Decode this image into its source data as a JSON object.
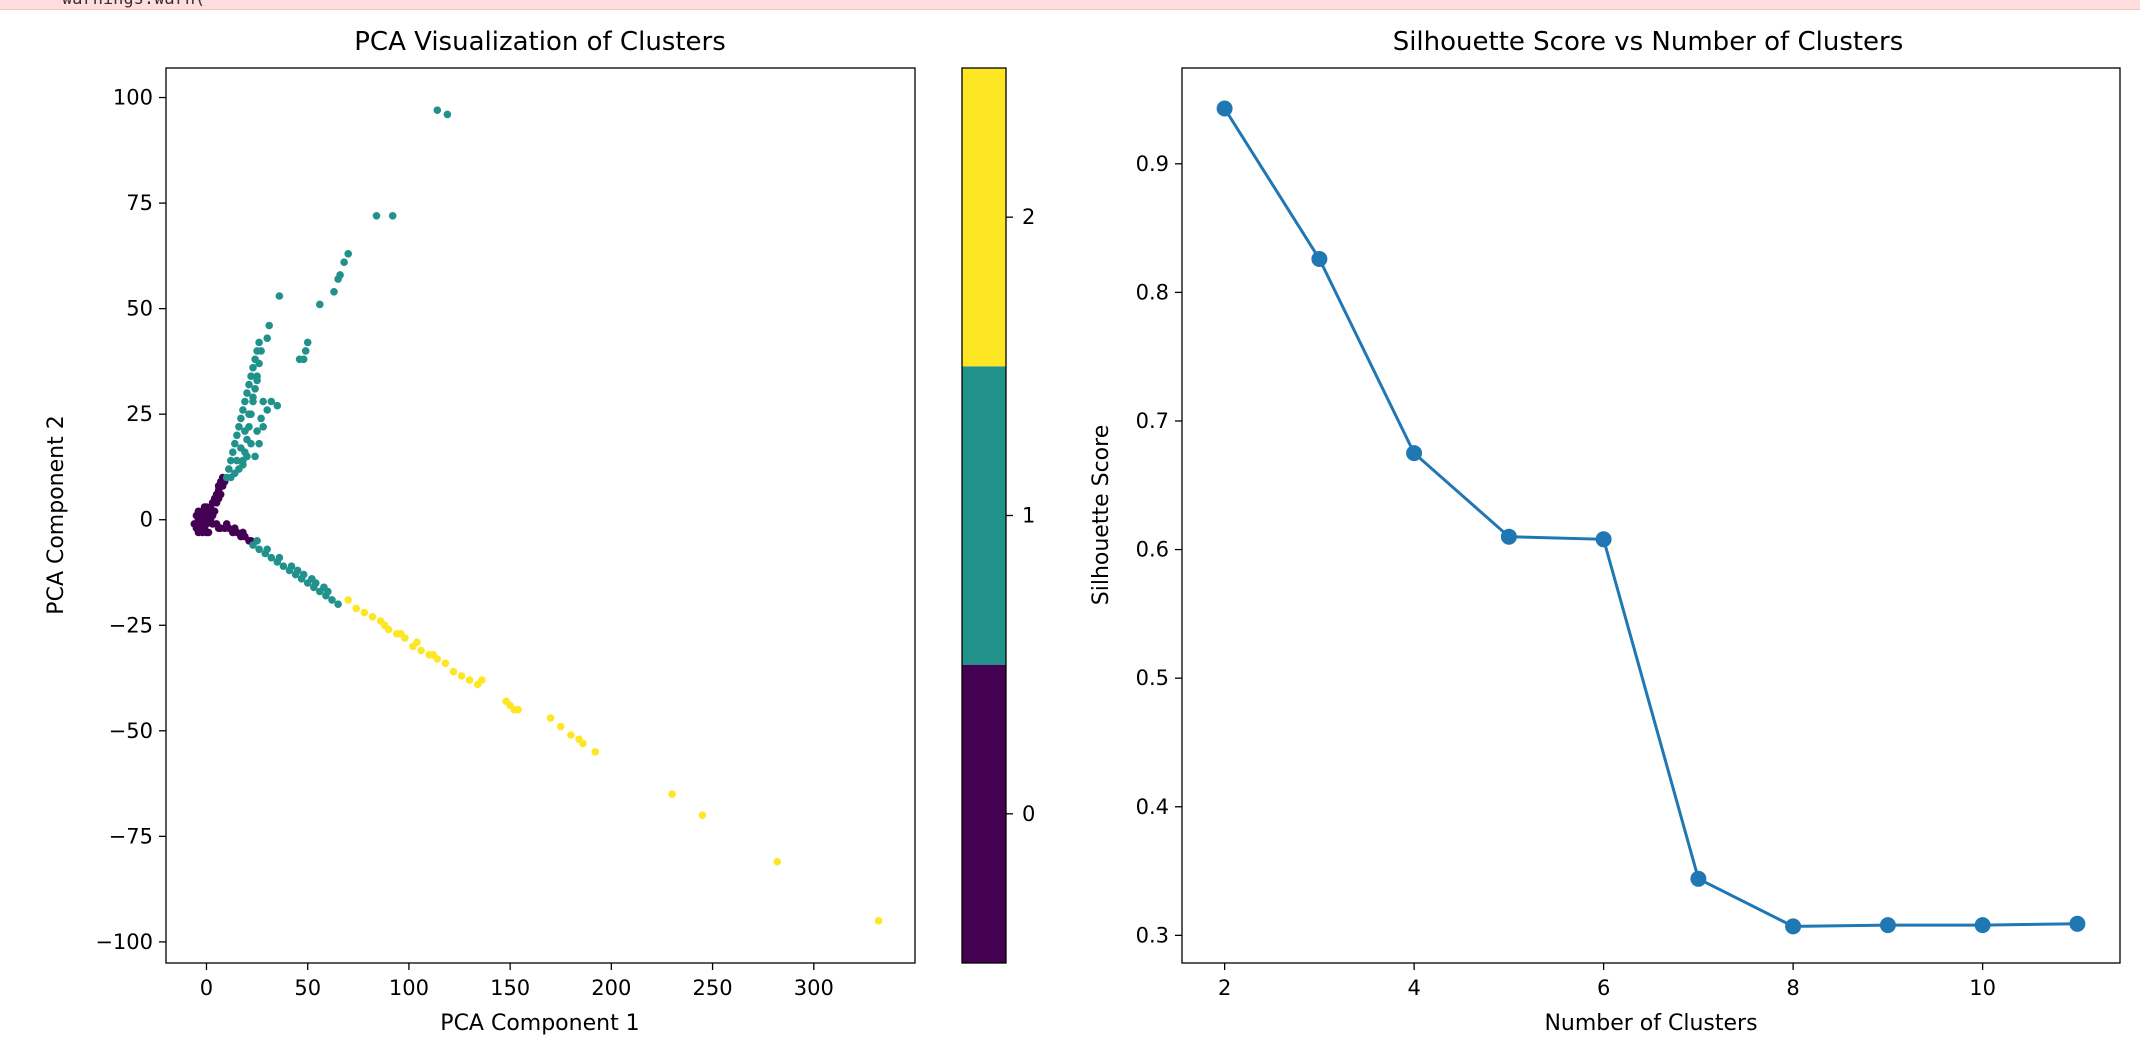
{
  "warning": {
    "text": "warnings.warn("
  },
  "colors": {
    "viridis0": "#440154",
    "viridis1": "#21918c",
    "viridis2": "#fde725",
    "line": "#1f77b4"
  },
  "chart_data": [
    {
      "type": "scatter",
      "title": "PCA Visualization of Clusters",
      "xlabel": "PCA Component 1",
      "ylabel": "PCA Component 2",
      "xlim": [
        -20,
        350
      ],
      "ylim": [
        -105,
        107
      ],
      "xticks": [
        0,
        50,
        100,
        150,
        200,
        250,
        300
      ],
      "yticks": [
        -100,
        -75,
        -50,
        -25,
        0,
        25,
        50,
        75,
        100
      ],
      "colorbar": {
        "ticks": [
          0,
          1,
          2
        ],
        "range": [
          -0.5,
          2.5
        ],
        "colors": [
          "#440154",
          "#21918c",
          "#fde725"
        ]
      },
      "series": [
        {
          "cluster": 0,
          "color": "#440154",
          "points": [
            [
              -4,
              -3
            ],
            [
              -3,
              -2
            ],
            [
              -2,
              -1
            ],
            [
              -1,
              0
            ],
            [
              0,
              1
            ],
            [
              1,
              2
            ],
            [
              -2,
              2
            ],
            [
              -3,
              1
            ],
            [
              -4,
              0
            ],
            [
              -3,
              -1
            ],
            [
              -1,
              -2
            ],
            [
              0,
              -1
            ],
            [
              2,
              0
            ],
            [
              3,
              1
            ],
            [
              2,
              2
            ],
            [
              0,
              3
            ],
            [
              -1,
              3
            ],
            [
              1,
              -3
            ],
            [
              -5,
              -2
            ],
            [
              -4,
              2
            ],
            [
              2,
              3
            ],
            [
              3,
              4
            ],
            [
              4,
              5
            ],
            [
              5,
              6
            ],
            [
              6,
              7
            ],
            [
              6,
              8
            ],
            [
              7,
              9
            ],
            [
              8,
              10
            ],
            [
              8,
              8
            ],
            [
              9,
              9
            ],
            [
              5,
              4
            ],
            [
              4,
              2
            ],
            [
              6,
              5
            ],
            [
              7,
              6
            ],
            [
              3,
              -1
            ],
            [
              5,
              -1
            ],
            [
              7,
              -2
            ],
            [
              9,
              -2
            ],
            [
              11,
              -2
            ],
            [
              13,
              -3
            ],
            [
              15,
              -3
            ],
            [
              17,
              -4
            ],
            [
              19,
              -4
            ],
            [
              21,
              -5
            ],
            [
              22,
              -5
            ],
            [
              6,
              -2
            ],
            [
              10,
              -1
            ],
            [
              14,
              -2
            ],
            [
              18,
              -3
            ],
            [
              -4,
              -2
            ],
            [
              -2,
              -3
            ],
            [
              0,
              -3
            ],
            [
              1,
              1
            ],
            [
              -5,
              1
            ],
            [
              -6,
              -1
            ]
          ]
        },
        {
          "cluster": 1,
          "color": "#21918c",
          "points": [
            [
              10,
              10
            ],
            [
              11,
              12
            ],
            [
              12,
              14
            ],
            [
              13,
              16
            ],
            [
              14,
              18
            ],
            [
              15,
              20
            ],
            [
              16,
              22
            ],
            [
              17,
              24
            ],
            [
              18,
              26
            ],
            [
              19,
              28
            ],
            [
              20,
              30
            ],
            [
              21,
              32
            ],
            [
              22,
              34
            ],
            [
              23,
              36
            ],
            [
              24,
              38
            ],
            [
              25,
              40
            ],
            [
              26,
              42
            ],
            [
              27,
              40
            ],
            [
              26,
              37
            ],
            [
              25,
              34
            ],
            [
              24,
              31
            ],
            [
              23,
              28
            ],
            [
              22,
              25
            ],
            [
              21,
              22
            ],
            [
              20,
              19
            ],
            [
              19,
              16
            ],
            [
              18,
              14
            ],
            [
              16,
              12
            ],
            [
              14,
              11
            ],
            [
              12,
              10
            ],
            [
              15,
              14
            ],
            [
              17,
              17
            ],
            [
              19,
              21
            ],
            [
              21,
              25
            ],
            [
              23,
              29
            ],
            [
              25,
              33
            ],
            [
              24,
              15
            ],
            [
              26,
              18
            ],
            [
              28,
              22
            ],
            [
              30,
              26
            ],
            [
              32,
              28
            ],
            [
              35,
              27
            ],
            [
              28,
              28
            ],
            [
              22,
              18
            ],
            [
              20,
              15
            ],
            [
              18,
              13
            ],
            [
              25,
              21
            ],
            [
              27,
              24
            ],
            [
              30,
              43
            ],
            [
              31,
              46
            ],
            [
              36,
              53
            ],
            [
              48,
              38
            ],
            [
              46,
              38
            ],
            [
              49,
              40
            ],
            [
              50,
              42
            ],
            [
              56,
              51
            ],
            [
              63,
              54
            ],
            [
              65,
              57
            ],
            [
              66,
              58
            ],
            [
              68,
              61
            ],
            [
              70,
              63
            ],
            [
              84,
              72
            ],
            [
              92,
              72
            ],
            [
              114,
              97
            ],
            [
              119,
              96
            ],
            [
              23,
              -6
            ],
            [
              26,
              -7
            ],
            [
              29,
              -8
            ],
            [
              32,
              -9
            ],
            [
              35,
              -10
            ],
            [
              38,
              -11
            ],
            [
              41,
              -12
            ],
            [
              44,
              -13
            ],
            [
              47,
              -14
            ],
            [
              50,
              -15
            ],
            [
              53,
              -16
            ],
            [
              56,
              -17
            ],
            [
              59,
              -18
            ],
            [
              62,
              -19
            ],
            [
              65,
              -20
            ],
            [
              25,
              -5
            ],
            [
              30,
              -7
            ],
            [
              36,
              -9
            ],
            [
              42,
              -11
            ],
            [
              48,
              -13
            ],
            [
              54,
              -15
            ],
            [
              60,
              -17
            ],
            [
              45,
              -12
            ],
            [
              52,
              -14
            ],
            [
              58,
              -16
            ]
          ]
        },
        {
          "cluster": 2,
          "color": "#fde725",
          "points": [
            [
              70,
              -19
            ],
            [
              74,
              -21
            ],
            [
              78,
              -22
            ],
            [
              82,
              -23
            ],
            [
              86,
              -24
            ],
            [
              90,
              -26
            ],
            [
              94,
              -27
            ],
            [
              98,
              -28
            ],
            [
              102,
              -30
            ],
            [
              106,
              -31
            ],
            [
              110,
              -32
            ],
            [
              114,
              -33
            ],
            [
              118,
              -34
            ],
            [
              122,
              -36
            ],
            [
              126,
              -37
            ],
            [
              130,
              -38
            ],
            [
              134,
              -39
            ],
            [
              136,
              -38
            ],
            [
              88,
              -25
            ],
            [
              96,
              -27
            ],
            [
              104,
              -29
            ],
            [
              112,
              -32
            ],
            [
              150,
              -44
            ],
            [
              152,
              -45
            ],
            [
              154,
              -45
            ],
            [
              148,
              -43
            ],
            [
              170,
              -47
            ],
            [
              175,
              -49
            ],
            [
              180,
              -51
            ],
            [
              184,
              -52
            ],
            [
              186,
              -53
            ],
            [
              192,
              -55
            ],
            [
              230,
              -65
            ],
            [
              245,
              -70
            ],
            [
              282,
              -81
            ],
            [
              332,
              -95
            ]
          ]
        }
      ]
    },
    {
      "type": "line",
      "title": "Silhouette Score vs Number of Clusters",
      "xlabel": "Number of Clusters",
      "ylabel": "Silhouette Score",
      "xlim": [
        1.55,
        11.45
      ],
      "ylim": [
        0.2785,
        0.9745
      ],
      "xticks": [
        2,
        4,
        6,
        8,
        10
      ],
      "yticks": [
        0.3,
        0.4,
        0.5,
        0.6,
        0.7,
        0.8,
        0.9
      ],
      "x": [
        2,
        3,
        4,
        5,
        6,
        7,
        8,
        9,
        10,
        11
      ],
      "y": [
        0.943,
        0.826,
        0.675,
        0.61,
        0.608,
        0.344,
        0.307,
        0.308,
        0.308,
        0.309
      ]
    }
  ]
}
